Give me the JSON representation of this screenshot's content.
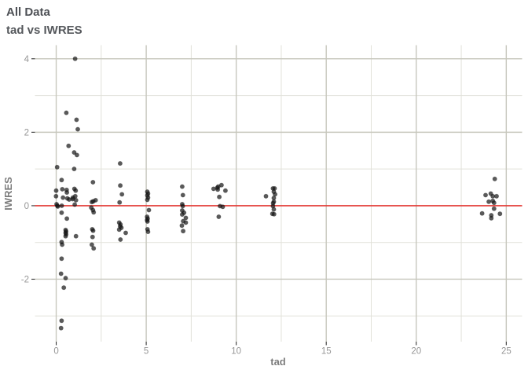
{
  "chart_data": {
    "type": "scatter",
    "title": "All Data",
    "subtitle": "tad vs IWRES",
    "xlabel": "tad",
    "ylabel": "IWRES",
    "xlim": [
      -1.18,
      25.88
    ],
    "ylim": [
      -3.7,
      4.37
    ],
    "grid": true,
    "legend": "none",
    "x_ticks": {
      "values": [
        0,
        5,
        10,
        15,
        20,
        25
      ],
      "labels": [
        "0",
        "5",
        "10",
        "15",
        "20",
        "25"
      ]
    },
    "x_minor_ticks": [
      2.5,
      7.5,
      12.5,
      17.5,
      22.5
    ],
    "y_ticks": {
      "values": [
        4,
        2,
        0,
        -2
      ],
      "labels": [
        "4",
        "2",
        "0",
        "-2"
      ]
    },
    "y_minor_ticks": [
      3,
      1,
      -1,
      -3
    ],
    "reference_line": {
      "y": 0
    },
    "colors": {
      "title": "#4d5055",
      "subtitle": "#55585c",
      "axis_title": "#7d7d7d",
      "tick_label": "#969696",
      "tick_mark": "#333333",
      "grid_major": "#c7c7bd",
      "grid_minor": "#e1e1d9",
      "reference_line": "#e8211d",
      "point": "#141414"
    },
    "point_style": {
      "radius": 2.7,
      "fill_opacity": 0.7,
      "stroke_opacity": 0.3,
      "stroke_width": 0.7
    },
    "points": [
      [
        0.05,
        1.05
      ],
      [
        0.0,
        0.41
      ],
      [
        -0.01,
        0.26
      ],
      [
        0.02,
        0.04
      ],
      [
        0.06,
        0.0
      ],
      [
        0.09,
        -0.02
      ],
      [
        0.3,
        0.7
      ],
      [
        0.34,
        0.45
      ],
      [
        0.38,
        0.22
      ],
      [
        0.31,
        0.0
      ],
      [
        0.3,
        -0.19
      ],
      [
        0.3,
        -0.99
      ],
      [
        0.33,
        -1.06
      ],
      [
        0.3,
        -1.44
      ],
      [
        0.27,
        -1.85
      ],
      [
        0.42,
        -2.23
      ],
      [
        0.3,
        -3.13
      ],
      [
        0.27,
        -3.33
      ],
      [
        0.56,
        2.53
      ],
      [
        0.69,
        1.63
      ],
      [
        0.58,
        0.43
      ],
      [
        0.59,
        0.36
      ],
      [
        0.62,
        0.2
      ],
      [
        0.72,
        0.17
      ],
      [
        0.59,
        -0.35
      ],
      [
        0.52,
        -0.66
      ],
      [
        0.55,
        -0.7
      ],
      [
        0.52,
        -0.74
      ],
      [
        0.55,
        -0.78
      ],
      [
        0.52,
        -0.83
      ],
      [
        0.52,
        -1.97
      ],
      [
        1.05,
        4.0
      ],
      [
        1.13,
        2.34
      ],
      [
        1.2,
        2.08
      ],
      [
        1.0,
        1.45
      ],
      [
        1.15,
        1.38
      ],
      [
        1.0,
        1.0
      ],
      [
        0.93,
        0.22
      ],
      [
        0.91,
        0.18
      ],
      [
        1.01,
        0.46
      ],
      [
        1.08,
        0.41
      ],
      [
        1.06,
        0.26
      ],
      [
        1.1,
        0.15
      ],
      [
        1.03,
        0.03
      ],
      [
        1.1,
        -0.83
      ],
      [
        2.04,
        0.64
      ],
      [
        1.98,
        0.1
      ],
      [
        2.06,
        0.12
      ],
      [
        2.19,
        0.15
      ],
      [
        1.95,
        -0.05
      ],
      [
        2.04,
        -0.12
      ],
      [
        2.08,
        -0.18
      ],
      [
        2.0,
        -0.64
      ],
      [
        2.05,
        -0.68
      ],
      [
        2.02,
        -0.85
      ],
      [
        1.98,
        -1.06
      ],
      [
        2.08,
        -1.16
      ],
      [
        3.55,
        1.15
      ],
      [
        3.56,
        0.55
      ],
      [
        3.65,
        0.31
      ],
      [
        3.52,
        0.09
      ],
      [
        3.5,
        -0.46
      ],
      [
        3.57,
        -0.51
      ],
      [
        3.55,
        -0.56
      ],
      [
        3.62,
        -0.6
      ],
      [
        3.5,
        -0.65
      ],
      [
        3.86,
        -0.74
      ],
      [
        3.57,
        -0.92
      ],
      [
        5.06,
        0.38
      ],
      [
        5.1,
        0.33
      ],
      [
        5.06,
        0.28
      ],
      [
        5.1,
        0.22
      ],
      [
        5.06,
        0.16
      ],
      [
        5.15,
        -0.12
      ],
      [
        5.05,
        -0.3
      ],
      [
        5.08,
        -0.35
      ],
      [
        5.05,
        -0.39
      ],
      [
        5.07,
        -0.43
      ],
      [
        5.07,
        -0.64
      ],
      [
        5.1,
        -0.71
      ],
      [
        7.0,
        0.52
      ],
      [
        7.04,
        0.29
      ],
      [
        7.0,
        0.04
      ],
      [
        7.03,
        -0.01
      ],
      [
        7.0,
        -0.13
      ],
      [
        7.1,
        -0.19
      ],
      [
        7.0,
        -0.24
      ],
      [
        7.2,
        -0.33
      ],
      [
        7.05,
        -0.42
      ],
      [
        7.2,
        -0.46
      ],
      [
        6.98,
        -0.54
      ],
      [
        7.05,
        -0.69
      ],
      [
        8.74,
        0.46
      ],
      [
        8.95,
        0.49
      ],
      [
        9.0,
        0.52
      ],
      [
        8.97,
        0.44
      ],
      [
        9.18,
        0.56
      ],
      [
        9.4,
        0.41
      ],
      [
        9.06,
        0.24
      ],
      [
        9.1,
        -0.01
      ],
      [
        9.25,
        -0.03
      ],
      [
        9.03,
        -0.3
      ],
      [
        11.65,
        0.26
      ],
      [
        12.04,
        0.47
      ],
      [
        12.13,
        0.47
      ],
      [
        12.09,
        0.38
      ],
      [
        12.16,
        0.31
      ],
      [
        12.09,
        0.21
      ],
      [
        12.09,
        0.11
      ],
      [
        12.05,
        0.07
      ],
      [
        12.04,
        -0.01
      ],
      [
        12.09,
        -0.1
      ],
      [
        12.01,
        -0.22
      ],
      [
        12.1,
        -0.23
      ],
      [
        24.36,
        0.73
      ],
      [
        23.85,
        0.29
      ],
      [
        24.14,
        0.33
      ],
      [
        24.25,
        0.26
      ],
      [
        24.46,
        0.26
      ],
      [
        24.03,
        0.11
      ],
      [
        24.25,
        0.13
      ],
      [
        24.32,
        0.08
      ],
      [
        24.32,
        -0.08
      ],
      [
        23.66,
        -0.21
      ],
      [
        24.17,
        -0.26
      ],
      [
        24.17,
        -0.34
      ],
      [
        24.65,
        -0.22
      ]
    ]
  }
}
